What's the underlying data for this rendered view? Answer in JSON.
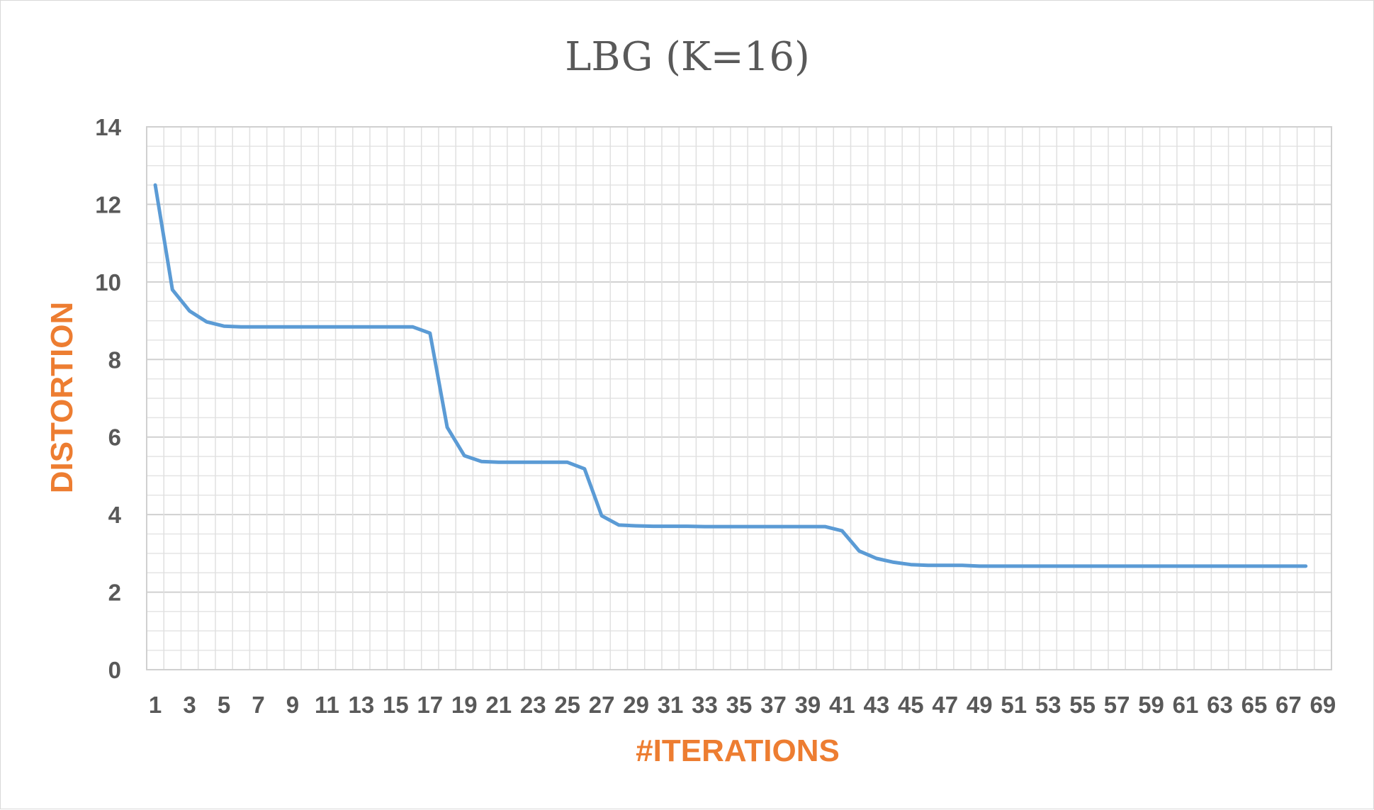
{
  "chart_data": {
    "type": "line",
    "title": "LBG (K=16)",
    "xlabel": "#ITERATIONS",
    "ylabel": "DISTORTION",
    "x": [
      1,
      2,
      3,
      4,
      5,
      6,
      7,
      8,
      9,
      10,
      11,
      12,
      13,
      14,
      15,
      16,
      17,
      18,
      19,
      20,
      21,
      22,
      23,
      24,
      25,
      26,
      27,
      28,
      29,
      30,
      31,
      32,
      33,
      34,
      35,
      36,
      37,
      38,
      39,
      40,
      41,
      42,
      43,
      44,
      45,
      46,
      47,
      48,
      49,
      50,
      51,
      52,
      53,
      54,
      55,
      56,
      57,
      58,
      59,
      60,
      61,
      62,
      63,
      64,
      65,
      66,
      67,
      68
    ],
    "x_tick_labels": [
      "1",
      "3",
      "5",
      "7",
      "9",
      "11",
      "13",
      "15",
      "17",
      "19",
      "21",
      "23",
      "25",
      "27",
      "29",
      "31",
      "33",
      "35",
      "37",
      "39",
      "41",
      "43",
      "45",
      "47",
      "49",
      "51",
      "53",
      "55",
      "57",
      "59",
      "61",
      "63",
      "65",
      "67",
      "69"
    ],
    "ylim": [
      0,
      14
    ],
    "y_ticks": [
      0,
      2,
      4,
      6,
      8,
      10,
      12,
      14
    ],
    "grid": "major and minor",
    "legend": "none",
    "series": [
      {
        "color": "#5b9bd5",
        "values": [
          12.5,
          9.8,
          9.25,
          8.97,
          8.86,
          8.84,
          8.84,
          8.84,
          8.84,
          8.84,
          8.84,
          8.84,
          8.84,
          8.84,
          8.84,
          8.84,
          8.68,
          6.25,
          5.52,
          5.37,
          5.35,
          5.35,
          5.35,
          5.35,
          5.35,
          5.18,
          3.97,
          3.73,
          3.71,
          3.7,
          3.7,
          3.7,
          3.69,
          3.69,
          3.69,
          3.69,
          3.69,
          3.69,
          3.69,
          3.69,
          3.58,
          3.06,
          2.87,
          2.77,
          2.71,
          2.69,
          2.69,
          2.69,
          2.67,
          2.67,
          2.67,
          2.67,
          2.67,
          2.67,
          2.67,
          2.67,
          2.67,
          2.67,
          2.67,
          2.67,
          2.67,
          2.67,
          2.67,
          2.67,
          2.67,
          2.67,
          2.67,
          2.67
        ]
      }
    ]
  }
}
